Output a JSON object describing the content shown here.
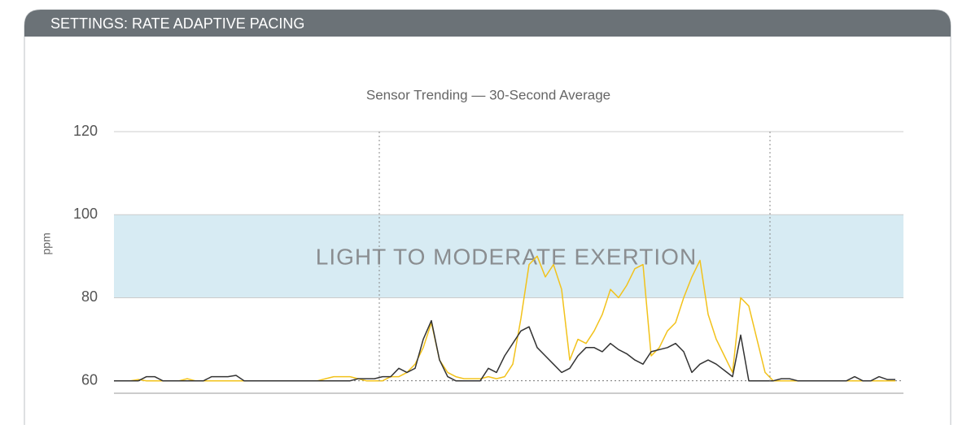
{
  "header": {
    "title": "SETTINGS: RATE ADAPTIVE PACING"
  },
  "chart_data": {
    "type": "line",
    "title": "Sensor Trending — 30-Second Average",
    "y_label": "ppm",
    "ylim": [
      57,
      120
    ],
    "yticks": [
      60,
      80,
      100,
      120
    ],
    "grid": true,
    "band": {
      "from": 80,
      "to": 100,
      "label": "LIGHT TO MODERATE EXERTION",
      "color": "#d7ebf3"
    },
    "series": [
      {
        "color": "#f2c21b",
        "values": [
          60,
          60,
          60,
          60.3,
          60,
          60,
          60,
          60,
          60,
          60.5,
          60,
          60,
          60,
          60,
          60,
          60,
          60,
          60,
          60,
          60,
          60,
          60,
          60,
          60,
          60,
          60,
          60.5,
          61,
          61,
          61,
          60.5,
          60,
          60,
          60,
          61,
          61,
          62,
          64,
          68,
          74,
          65,
          62,
          61,
          60.5,
          60.5,
          60.5,
          61,
          60.5,
          61,
          64,
          75,
          88,
          90,
          85,
          88,
          82,
          65,
          70,
          69,
          72,
          76,
          82,
          80,
          83,
          87,
          88,
          66,
          68,
          72,
          74,
          80,
          85,
          89,
          76,
          70,
          66,
          62,
          80,
          78,
          70,
          62,
          60,
          60,
          60,
          60,
          60,
          60,
          60,
          60,
          60,
          60,
          60,
          60,
          60,
          60,
          60,
          60
        ]
      },
      {
        "color": "#333333",
        "values": [
          60,
          60,
          60,
          60,
          61,
          61,
          60,
          60,
          60,
          60,
          60,
          60,
          61,
          61,
          61,
          61.3,
          60,
          60,
          60,
          60,
          60,
          60,
          60,
          60,
          60,
          60,
          60,
          60,
          60,
          60,
          60.5,
          60.5,
          60.5,
          61,
          61,
          63,
          62,
          63,
          70,
          74.5,
          65,
          61,
          60,
          60,
          60,
          60,
          63,
          62,
          66,
          69,
          72,
          73,
          68,
          66,
          64,
          62,
          63,
          66,
          68,
          68,
          67,
          69,
          67.5,
          66.5,
          65,
          64,
          67,
          67.5,
          68,
          69,
          67,
          62,
          64,
          65,
          64,
          62.5,
          61,
          71,
          60,
          60,
          60,
          60,
          60.5,
          60.5,
          60,
          60,
          60,
          60,
          60,
          60,
          60,
          61,
          60,
          60,
          61,
          60.3,
          60.3
        ]
      }
    ]
  }
}
